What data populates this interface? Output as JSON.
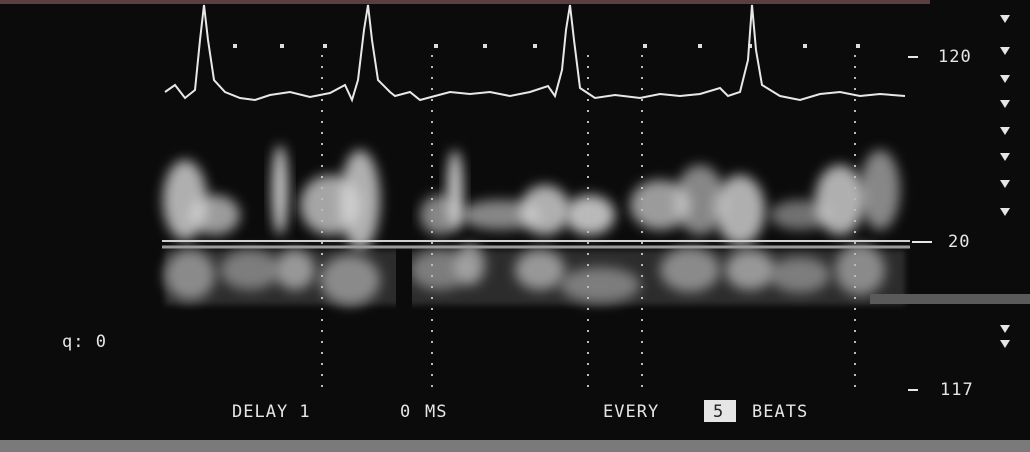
{
  "scale": {
    "top": "120",
    "baseline": "20",
    "bottom": "117"
  },
  "left_label": "q: 0",
  "footer": {
    "delay": "DELAY 1",
    "delay_value": "0",
    "delay_unit": "MS",
    "every": "EVERY",
    "beats_count": "5",
    "beats": "BEATS"
  }
}
